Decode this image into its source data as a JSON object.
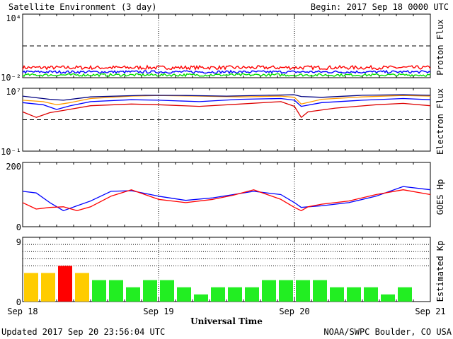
{
  "header": {
    "title": "Satellite Environment (3 day)",
    "begin": "Begin:  2017 Sep 18 0000 UTC"
  },
  "footer": {
    "updated": "Updated 2017 Sep 20 23:56:04 UTC",
    "credit": "NOAA/SWPC Boulder, CO USA"
  },
  "x_axis": {
    "title": "Universal Time",
    "range_days": [
      0,
      3
    ],
    "ticks": [
      {
        "day": 0,
        "label": "Sep 18"
      },
      {
        "day": 1,
        "label": "Sep 19"
      },
      {
        "day": 2,
        "label": "Sep 20"
      },
      {
        "day": 3,
        "label": "Sep 21"
      }
    ]
  },
  "chart_data": [
    {
      "type": "line",
      "ylabel": "Proton Flux",
      "scale": "log",
      "ylim": [
        0.01,
        10000
      ],
      "tick_labels": [
        "10⁴",
        "10⁻²"
      ],
      "threshold": 10,
      "grid": "vertical day lines",
      "series": [
        {
          "color": "#ff0000",
          "level": 0.09,
          "noise": 0.35
        },
        {
          "color": "#0000ff",
          "level": 0.035,
          "noise": 0.25
        },
        {
          "color": "#00dd00",
          "level": 0.018,
          "noise": 0.25
        }
      ]
    },
    {
      "type": "line",
      "ylabel": "Electron Flux",
      "scale": "log",
      "ylim": [
        0.1,
        10000000
      ],
      "tick_labels": [
        "10⁷",
        "10⁻¹"
      ],
      "threshold": 1000,
      "grid": "vertical day lines",
      "series": [
        {
          "color": "#ff9900",
          "x": [
            0,
            0.15,
            0.25,
            0.35,
            0.5,
            0.8,
            1.0,
            1.3,
            1.6,
            1.9,
            2.0,
            2.05,
            2.2,
            2.5,
            2.8,
            3.0
          ],
          "y": [
            300000,
            200000,
            80000,
            150000,
            500000,
            1000000,
            1200000,
            1000000,
            800000,
            1000000,
            700000,
            100000,
            400000,
            800000,
            1200000,
            1000000
          ]
        },
        {
          "color": "#000080",
          "x": [
            0,
            0.2,
            0.3,
            0.5,
            0.9,
            1.2,
            1.5,
            1.8,
            2.0,
            2.05,
            2.2,
            2.5,
            2.8,
            3.0
          ],
          "y": [
            1000000,
            400000,
            300000,
            800000,
            1300000,
            1200000,
            1000000,
            1300000,
            1500000,
            900000,
            700000,
            1300000,
            1500000,
            1300000
          ]
        },
        {
          "color": "#0000ff",
          "x": [
            0,
            0.15,
            0.25,
            0.35,
            0.5,
            0.8,
            1.0,
            1.3,
            1.6,
            1.9,
            2.0,
            2.05,
            2.2,
            2.5,
            2.8,
            3.0
          ],
          "y": [
            150000,
            80000,
            20000,
            60000,
            200000,
            350000,
            300000,
            200000,
            400000,
            500000,
            300000,
            50000,
            150000,
            300000,
            500000,
            350000
          ]
        },
        {
          "color": "#dd0000",
          "x": [
            0,
            0.1,
            0.2,
            0.3,
            0.5,
            0.8,
            1.0,
            1.3,
            1.6,
            1.9,
            2.0,
            2.05,
            2.1,
            2.3,
            2.6,
            2.8,
            3.0
          ],
          "y": [
            10000,
            2000,
            8000,
            15000,
            60000,
            100000,
            80000,
            50000,
            100000,
            200000,
            50000,
            2000,
            10000,
            30000,
            80000,
            120000,
            60000
          ]
        }
      ]
    },
    {
      "type": "line",
      "ylabel": "GOES Hp",
      "ylim": [
        0,
        200
      ],
      "tick_labels": [
        "200",
        "0"
      ],
      "grid": "vertical day lines",
      "series": [
        {
          "color": "#0000ff",
          "x": [
            0,
            0.1,
            0.2,
            0.3,
            0.4,
            0.5,
            0.65,
            0.8,
            1.0,
            1.2,
            1.4,
            1.55,
            1.7,
            1.9,
            2.0,
            2.05,
            2.1,
            2.2,
            2.4,
            2.6,
            2.8,
            3.0
          ],
          "y": [
            110,
            105,
            75,
            50,
            65,
            80,
            110,
            112,
            95,
            82,
            90,
            100,
            110,
            100,
            75,
            60,
            62,
            65,
            75,
            95,
            125,
            115
          ]
        },
        {
          "color": "#ff0000",
          "x": [
            0,
            0.1,
            0.2,
            0.3,
            0.4,
            0.5,
            0.65,
            0.8,
            1.0,
            1.2,
            1.4,
            1.55,
            1.7,
            1.9,
            2.0,
            2.05,
            2.1,
            2.2,
            2.4,
            2.6,
            2.8,
            3.0
          ],
          "y": [
            75,
            55,
            60,
            62,
            50,
            62,
            95,
            115,
            85,
            75,
            85,
            98,
            115,
            85,
            60,
            50,
            62,
            70,
            80,
            100,
            115,
            100
          ]
        }
      ]
    },
    {
      "type": "bar",
      "ylabel": "Estimated Kp",
      "ylim": [
        0,
        9
      ],
      "tick_labels": [
        "9",
        "0"
      ],
      "grid": "horizontal dotted lines at 5, 6, 7, 8",
      "interval_hours": 3,
      "values": [
        4,
        4,
        5,
        4,
        3,
        3,
        2,
        3,
        3,
        2,
        1,
        2,
        2,
        2,
        3,
        3,
        3,
        3,
        2,
        2,
        2,
        1,
        2
      ],
      "colors": {
        "quiet": "#22ee22",
        "active": "#ffcc00",
        "storm": "#ff0000"
      }
    }
  ]
}
